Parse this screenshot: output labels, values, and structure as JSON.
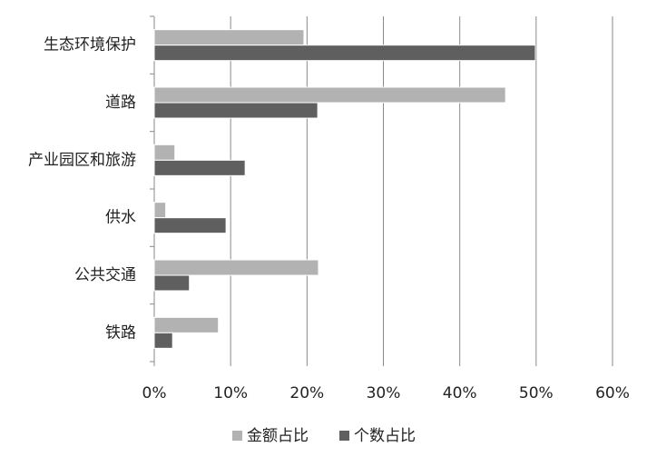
{
  "chart_data": {
    "type": "hbar",
    "categories": [
      "生态环境保护",
      "道路",
      "产业园区和旅游",
      "供水",
      "公共交通",
      "铁路"
    ],
    "series": [
      {
        "name": "金额占比",
        "color": "#b2b2b2",
        "values": [
          19.6,
          46.0,
          2.7,
          1.5,
          21.5,
          8.4
        ]
      },
      {
        "name": "个数占比",
        "color": "#5f5f5f",
        "values": [
          49.9,
          21.4,
          11.9,
          9.4,
          4.6,
          2.4
        ]
      }
    ],
    "xlim": [
      0,
      60
    ],
    "xticks": [
      {
        "value": 0,
        "label": "0%"
      },
      {
        "value": 10,
        "label": "10%"
      },
      {
        "value": 20,
        "label": "20%"
      },
      {
        "value": 30,
        "label": "30%"
      },
      {
        "value": 40,
        "label": "40%"
      },
      {
        "value": 50,
        "label": "50%"
      },
      {
        "value": 60,
        "label": "60%"
      }
    ],
    "grid": true,
    "legend": "bottom"
  }
}
